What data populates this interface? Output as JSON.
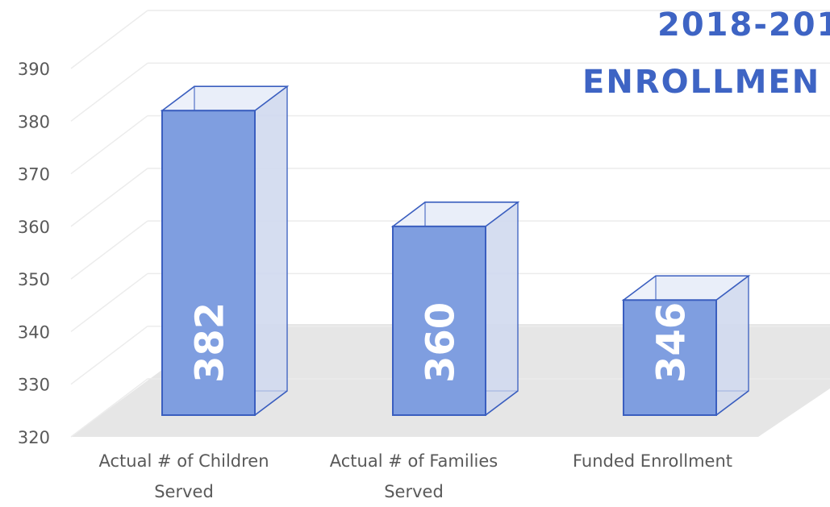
{
  "chart_data": {
    "type": "bar",
    "title_lines": [
      "2018-201",
      "ENROLLMEN"
    ],
    "categories": [
      [
        "Actual # of Children",
        "Served"
      ],
      [
        "Actual # of Families",
        "Served"
      ],
      [
        "Funded Enrollment"
      ]
    ],
    "values": [
      382,
      360,
      346
    ],
    "data_labels": [
      "382",
      "360",
      "346"
    ],
    "yticks": [
      "320",
      "330",
      "340",
      "350",
      "360",
      "370",
      "380",
      "390"
    ],
    "ylim": [
      320,
      390
    ],
    "xlabel": "",
    "ylabel": "",
    "grid": true,
    "style": "3d-column",
    "colors": {
      "bar_front": "#7f9ee0",
      "bar_edge": "#3a5ebf",
      "title": "#3e64c4",
      "floor": "#e6e6e6",
      "gridline": "#ececec",
      "tick_text": "#595959"
    }
  }
}
